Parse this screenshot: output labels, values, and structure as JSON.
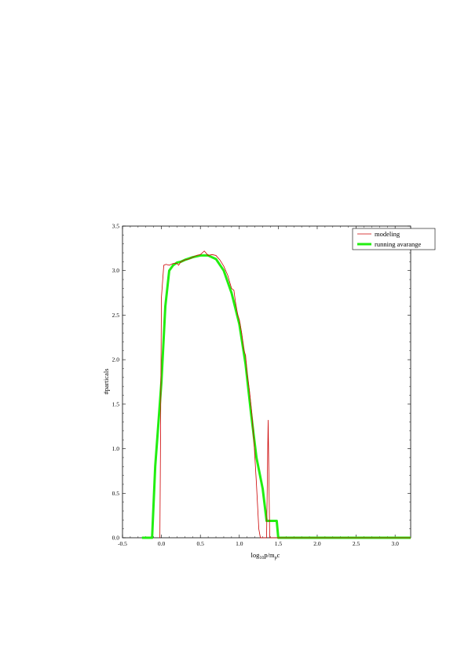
{
  "chart_data": {
    "type": "line",
    "xlabel_main": "log",
    "xlabel_sub1": "10",
    "xlabel_mid": "p/m",
    "xlabel_sub2": "p",
    "xlabel_end": "c",
    "ylabel": "#particals",
    "xlim": [
      -0.5,
      3.2
    ],
    "ylim": [
      0.0,
      3.5
    ],
    "x_ticks": [
      -0.5,
      0.0,
      0.5,
      1.0,
      1.5,
      2.0,
      2.5,
      3.0
    ],
    "x_tick_labels": [
      "-0.5",
      "0.0",
      "0.5",
      "1.0",
      "1.5",
      "2.0",
      "2.5",
      "3.0"
    ],
    "y_ticks": [
      0.0,
      0.5,
      1.0,
      1.5,
      2.0,
      2.5,
      3.0,
      3.5
    ],
    "y_tick_labels": [
      "0.0",
      "0.5",
      "1.0",
      "1.5",
      "2.0",
      "2.5",
      "3.0",
      "3.5"
    ],
    "grid": false,
    "legend_position": "top-right",
    "series": [
      {
        "name": "modeling",
        "color": "#cc0000",
        "points": [
          [
            -0.02,
            0.0
          ],
          [
            0.0,
            2.7
          ],
          [
            0.03,
            3.06
          ],
          [
            0.06,
            3.07
          ],
          [
            0.1,
            3.06
          ],
          [
            0.15,
            3.08
          ],
          [
            0.2,
            3.08
          ],
          [
            0.22,
            3.06
          ],
          [
            0.25,
            3.1
          ],
          [
            0.3,
            3.12
          ],
          [
            0.35,
            3.13
          ],
          [
            0.4,
            3.15
          ],
          [
            0.45,
            3.17
          ],
          [
            0.5,
            3.18
          ],
          [
            0.55,
            3.22
          ],
          [
            0.6,
            3.17
          ],
          [
            0.65,
            3.18
          ],
          [
            0.7,
            3.17
          ],
          [
            0.75,
            3.12
          ],
          [
            0.8,
            3.05
          ],
          [
            0.85,
            2.95
          ],
          [
            0.9,
            2.8
          ],
          [
            0.93,
            2.78
          ],
          [
            0.95,
            2.65
          ],
          [
            0.98,
            2.5
          ],
          [
            1.0,
            2.45
          ],
          [
            1.03,
            2.3
          ],
          [
            1.06,
            2.1
          ],
          [
            1.08,
            2.05
          ],
          [
            1.1,
            1.85
          ],
          [
            1.13,
            1.65
          ],
          [
            1.16,
            1.4
          ],
          [
            1.19,
            1.05
          ],
          [
            1.22,
            0.6
          ],
          [
            1.25,
            0.1
          ],
          [
            1.27,
            0.0
          ],
          [
            1.35,
            0.0
          ],
          [
            1.37,
            1.32
          ],
          [
            1.39,
            0.0
          ],
          [
            3.2,
            0.0
          ]
        ]
      },
      {
        "name": "running avarange",
        "color": "#22ee11",
        "points": [
          [
            -0.25,
            0.0
          ],
          [
            -0.12,
            0.0
          ],
          [
            -0.08,
            0.8
          ],
          [
            0.0,
            1.75
          ],
          [
            0.05,
            2.6
          ],
          [
            0.1,
            3.0
          ],
          [
            0.15,
            3.06
          ],
          [
            0.2,
            3.09
          ],
          [
            0.25,
            3.1
          ],
          [
            0.3,
            3.12
          ],
          [
            0.4,
            3.15
          ],
          [
            0.5,
            3.17
          ],
          [
            0.6,
            3.17
          ],
          [
            0.7,
            3.13
          ],
          [
            0.8,
            3.0
          ],
          [
            0.9,
            2.75
          ],
          [
            1.0,
            2.4
          ],
          [
            1.08,
            1.95
          ],
          [
            1.15,
            1.4
          ],
          [
            1.22,
            0.9
          ],
          [
            1.3,
            0.55
          ],
          [
            1.35,
            0.19
          ],
          [
            1.48,
            0.19
          ],
          [
            1.5,
            0.0
          ],
          [
            3.2,
            0.0
          ]
        ]
      }
    ]
  }
}
